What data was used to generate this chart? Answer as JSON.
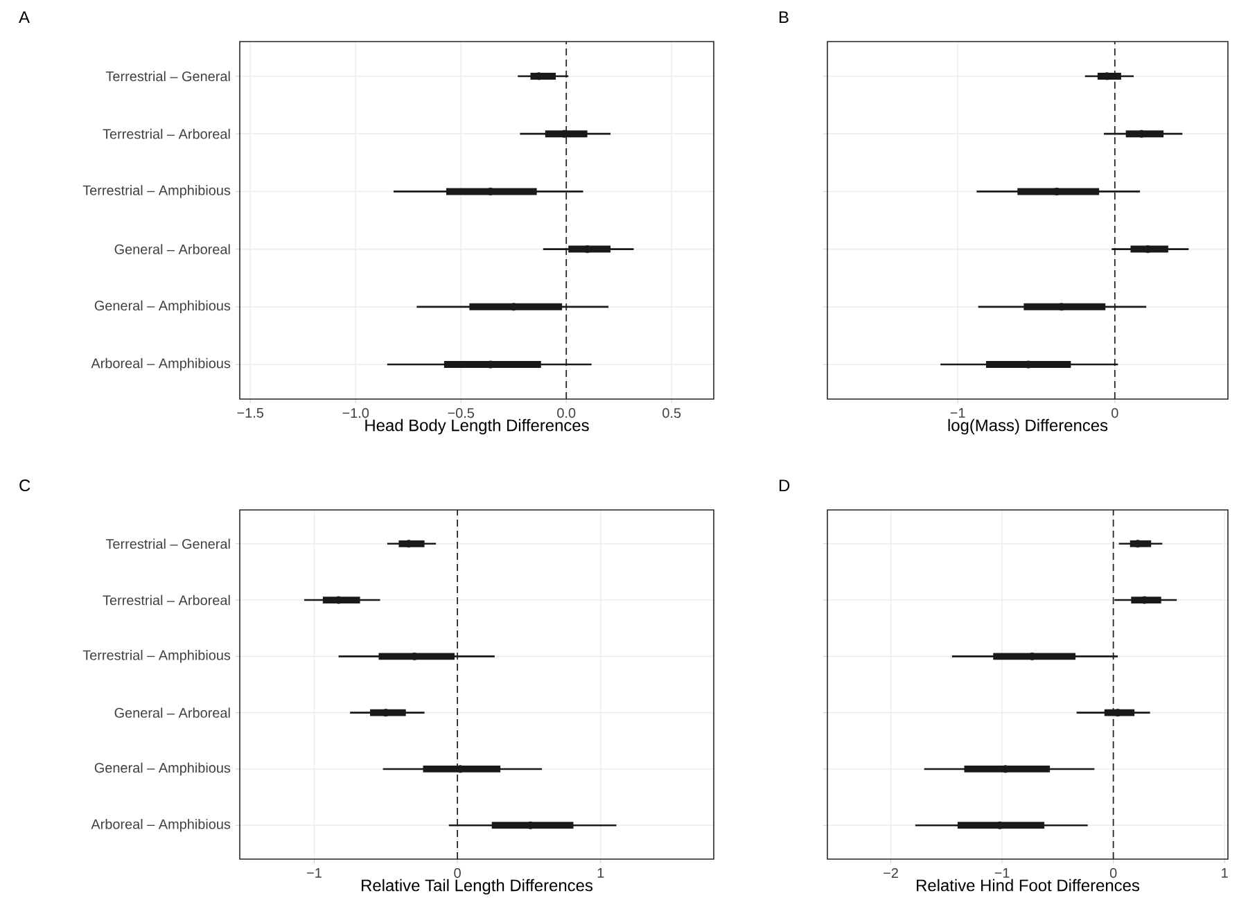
{
  "chart_data": [
    {
      "type": "box",
      "title": "A",
      "xlabel": "Head Body Length Differences",
      "orientation": "horizontal",
      "grid": true,
      "color": "#1a1a1a",
      "categories": [
        "Terrestrial – General",
        "Terrestrial – Arboreal",
        "Terrestrial – Amphibious",
        "General – Arboreal",
        "General – Amphibious",
        "Arboreal – Amphibious"
      ],
      "boxes": [
        {
          "low": -0.23,
          "q1": -0.17,
          "median": -0.13,
          "q3": -0.05,
          "high": 0.01
        },
        {
          "low": -0.22,
          "q1": -0.1,
          "median": -0.01,
          "q3": 0.1,
          "high": 0.21
        },
        {
          "low": -0.82,
          "q1": -0.57,
          "median": -0.36,
          "q3": -0.14,
          "high": 0.08
        },
        {
          "low": -0.11,
          "q1": 0.01,
          "median": 0.1,
          "q3": 0.21,
          "high": 0.32
        },
        {
          "low": -0.71,
          "q1": -0.46,
          "median": -0.25,
          "q3": -0.02,
          "high": 0.2
        },
        {
          "low": -0.85,
          "q1": -0.58,
          "median": -0.36,
          "q3": -0.12,
          "high": 0.12
        }
      ],
      "xlim": [
        -1.55,
        0.7
      ],
      "xticks": [
        {
          "value": -1.5,
          "label": "−1.5"
        },
        {
          "value": -1.0,
          "label": "−1.0"
        },
        {
          "value": -0.5,
          "label": "−0.5"
        },
        {
          "value": 0.0,
          "label": "0.0"
        },
        {
          "value": 0.5,
          "label": "0.5"
        }
      ],
      "ref_lines": [
        {
          "axis": "x",
          "value": 0,
          "line_style": "dashed"
        }
      ]
    },
    {
      "type": "box",
      "title": "B",
      "xlabel": "log(Mass) Differences",
      "orientation": "horizontal",
      "grid": true,
      "color": "#1a1a1a",
      "tick_labels": "x",
      "categories": [
        null,
        null,
        null,
        null,
        null,
        null
      ],
      "boxes": [
        {
          "low": -0.19,
          "q1": -0.11,
          "median": -0.05,
          "q3": 0.04,
          "high": 0.12
        },
        {
          "low": -0.07,
          "q1": 0.07,
          "median": 0.17,
          "q3": 0.31,
          "high": 0.43
        },
        {
          "low": -0.88,
          "q1": -0.62,
          "median": -0.37,
          "q3": -0.1,
          "high": 0.16
        },
        {
          "low": -0.02,
          "q1": 0.1,
          "median": 0.21,
          "q3": 0.34,
          "high": 0.47
        },
        {
          "low": -0.87,
          "q1": -0.58,
          "median": -0.34,
          "q3": -0.06,
          "high": 0.2
        },
        {
          "low": -1.11,
          "q1": -0.82,
          "median": -0.55,
          "q3": -0.28,
          "high": 0.02
        }
      ],
      "xlim": [
        -1.83,
        0.72
      ],
      "xticks": [
        {
          "value": -1,
          "label": "−1"
        },
        0
      ],
      "ref_lines": [
        {
          "axis": "x",
          "value": 0,
          "line_style": "dashed"
        }
      ]
    },
    {
      "type": "box",
      "title": "C",
      "xlabel": "Relative Tail Length Differences",
      "orientation": "horizontal",
      "grid": true,
      "color": "#1a1a1a",
      "categories": [
        "Terrestrial – General",
        "Terrestrial – Arboreal",
        "Terrestrial – Amphibious",
        "General – Arboreal",
        "General – Amphibious",
        "Arboreal – Amphibious"
      ],
      "boxes": [
        {
          "low": -0.49,
          "q1": -0.41,
          "median": -0.34,
          "q3": -0.23,
          "high": -0.15
        },
        {
          "low": -1.07,
          "q1": -0.94,
          "median": -0.83,
          "q3": -0.68,
          "high": -0.54
        },
        {
          "low": -0.83,
          "q1": -0.55,
          "median": -0.3,
          "q3": -0.02,
          "high": 0.26
        },
        {
          "low": -0.75,
          "q1": -0.61,
          "median": -0.5,
          "q3": -0.36,
          "high": -0.23
        },
        {
          "low": -0.52,
          "q1": -0.24,
          "median": 0.02,
          "q3": 0.3,
          "high": 0.59
        },
        {
          "low": -0.06,
          "q1": 0.24,
          "median": 0.51,
          "q3": 0.81,
          "high": 1.11
        }
      ],
      "xlim": [
        -1.52,
        1.79
      ],
      "xticks": [
        {
          "value": -1,
          "label": "−1"
        },
        0,
        1
      ],
      "ref_lines": [
        {
          "axis": "x",
          "value": 0,
          "line_style": "dashed"
        }
      ]
    },
    {
      "type": "box",
      "title": "D",
      "xlabel": "Relative Hind Foot Differences",
      "orientation": "horizontal",
      "grid": true,
      "color": "#1a1a1a",
      "tick_labels": "x",
      "categories": [
        null,
        null,
        null,
        null,
        null,
        null
      ],
      "boxes": [
        {
          "low": 0.05,
          "q1": 0.15,
          "median": 0.22,
          "q3": 0.34,
          "high": 0.44
        },
        {
          "low": 0.01,
          "q1": 0.16,
          "median": 0.28,
          "q3": 0.43,
          "high": 0.57
        },
        {
          "low": -1.45,
          "q1": -1.08,
          "median": -0.73,
          "q3": -0.34,
          "high": 0.04
        },
        {
          "low": -0.33,
          "q1": -0.08,
          "median": 0.04,
          "q3": 0.19,
          "high": 0.33
        },
        {
          "low": -1.7,
          "q1": -1.34,
          "median": -0.97,
          "q3": -0.57,
          "high": -0.17
        },
        {
          "low": -1.78,
          "q1": -1.4,
          "median": -1.02,
          "q3": -0.62,
          "high": -0.23
        }
      ],
      "xlim": [
        -2.57,
        1.03
      ],
      "xticks": [
        {
          "value": -2,
          "label": "−2"
        },
        {
          "value": -1,
          "label": "−1"
        },
        0,
        1
      ],
      "ref_lines": [
        {
          "axis": "x",
          "value": 0,
          "line_style": "dashed"
        }
      ]
    }
  ]
}
